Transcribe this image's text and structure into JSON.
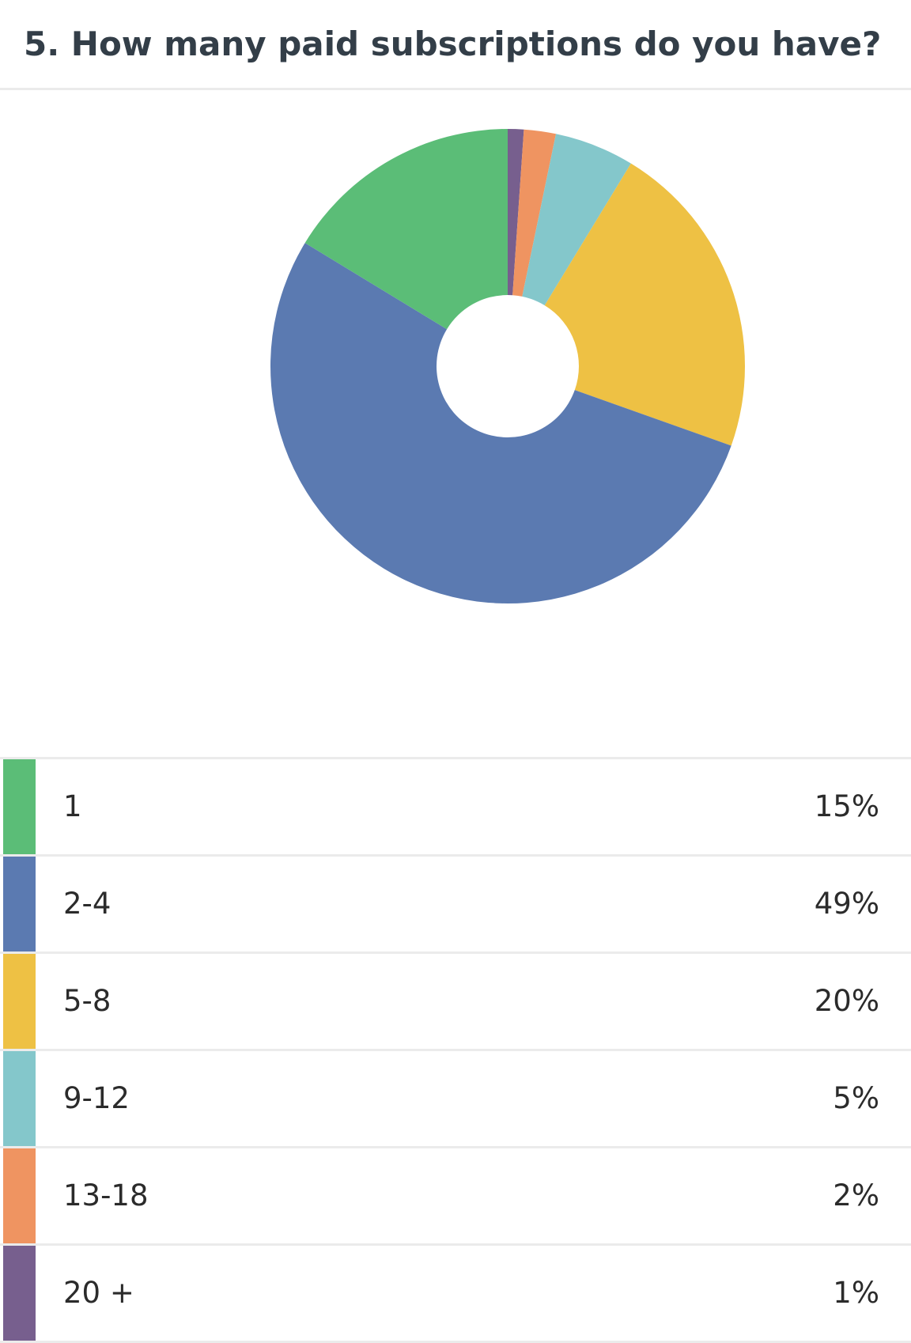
{
  "question": {
    "title": "5. How many paid subscriptions do you have?"
  },
  "chart_data": {
    "type": "pie",
    "donut": true,
    "categories": [
      "1",
      "2-4",
      "5-8",
      "9-12",
      "13-18",
      "20 +"
    ],
    "values": [
      15,
      49,
      20,
      5,
      2,
      1
    ],
    "value_labels": [
      "15%",
      "49%",
      "20%",
      "5%",
      "2%",
      "1%"
    ],
    "unit": "%",
    "colors": [
      "#5bbd77",
      "#5b7ab1",
      "#eec144",
      "#84c7cb",
      "#ef9461",
      "#775f8e"
    ],
    "slice_order_clockwise_from_top": [
      "20 +",
      "13-18",
      "9-12",
      "5-8",
      "2-4",
      "1"
    ],
    "legend_position": "bottom"
  }
}
